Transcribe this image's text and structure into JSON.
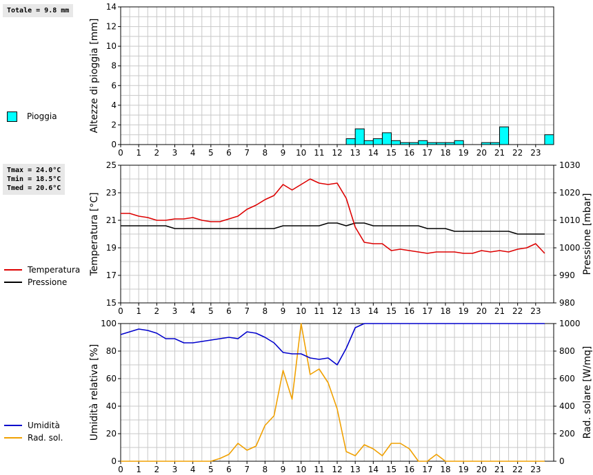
{
  "info": {
    "rain_total": "Totale = 9.8 mm",
    "tmax": "Tmax = 24.0°C",
    "tmin": "Tmin = 18.5°C",
    "tmed": "Tmed = 20.6°C"
  },
  "legend": {
    "rain": "Pioggia",
    "temperature": "Temperatura",
    "pressure": "Pressione",
    "humidity": "Umidità",
    "radiation": "Rad. sol."
  },
  "colors": {
    "rain_fill": "#00ffff",
    "temperature": "#dd0000",
    "pressure": "#000000",
    "humidity": "#0000cc",
    "radiation": "#f0a000",
    "grid": "#c8c8c8"
  },
  "chart_data": [
    {
      "type": "bar",
      "ylabel": "Altezze di pioggia [mm]",
      "ylim": [
        0,
        14
      ],
      "yticks": [
        0,
        2,
        4,
        6,
        8,
        10,
        12,
        14
      ],
      "xticks": [
        0,
        1,
        2,
        3,
        4,
        5,
        6,
        7,
        8,
        9,
        10,
        11,
        12,
        13,
        14,
        15,
        16,
        17,
        18,
        19,
        20,
        21,
        22,
        23
      ],
      "series": [
        {
          "name": "Pioggia",
          "x": [
            12.75,
            13.25,
            13.75,
            14.25,
            14.75,
            15.25,
            15.75,
            16.25,
            16.75,
            17.25,
            17.75,
            18.25,
            18.75,
            20.25,
            20.75,
            21.25,
            23.75
          ],
          "values": [
            0.6,
            1.6,
            0.4,
            0.6,
            1.2,
            0.4,
            0.2,
            0.2,
            0.4,
            0.2,
            0.2,
            0.2,
            0.4,
            0.2,
            0.2,
            1.8,
            1.0
          ]
        }
      ]
    },
    {
      "type": "line",
      "ylabel": "Temperatura [°C]",
      "ylabel_right": "Pressione [mbar]",
      "ylim": [
        15,
        25
      ],
      "yticks": [
        15,
        17,
        19,
        21,
        23,
        25
      ],
      "ylim_right": [
        980,
        1030
      ],
      "yticks_right": [
        980,
        990,
        1000,
        1010,
        1020,
        1030
      ],
      "xticks": [
        0,
        1,
        2,
        3,
        4,
        5,
        6,
        7,
        8,
        9,
        10,
        11,
        12,
        13,
        14,
        15,
        16,
        17,
        18,
        19,
        20,
        21,
        22,
        23
      ],
      "series": [
        {
          "name": "Temperatura",
          "axis": "left",
          "x": [
            0,
            0.5,
            1,
            1.5,
            2,
            2.5,
            3,
            3.5,
            4,
            4.5,
            5,
            5.5,
            6,
            6.5,
            7,
            7.5,
            8,
            8.5,
            9,
            9.5,
            10,
            10.5,
            11,
            11.5,
            12,
            12.5,
            13,
            13.5,
            14,
            14.5,
            15,
            15.5,
            16,
            16.5,
            17,
            17.5,
            18,
            18.5,
            19,
            19.5,
            20,
            20.5,
            21,
            21.5,
            22,
            22.5,
            23,
            23.5
          ],
          "values": [
            21.5,
            21.5,
            21.3,
            21.2,
            21.0,
            21.0,
            21.1,
            21.1,
            21.2,
            21.0,
            20.9,
            20.9,
            21.1,
            21.3,
            21.8,
            22.1,
            22.5,
            22.8,
            23.6,
            23.2,
            23.6,
            24.0,
            23.7,
            23.6,
            23.7,
            22.6,
            20.5,
            19.4,
            19.3,
            19.3,
            18.8,
            18.9,
            18.8,
            18.7,
            18.6,
            18.7,
            18.7,
            18.7,
            18.6,
            18.6,
            18.8,
            18.7,
            18.8,
            18.7,
            18.9,
            19.0,
            19.3,
            18.6
          ]
        },
        {
          "name": "Pressione",
          "axis": "right",
          "x": [
            0,
            0.5,
            1,
            1.5,
            2,
            2.5,
            3,
            3.5,
            4,
            4.5,
            5,
            5.5,
            6,
            6.5,
            7,
            7.5,
            8,
            8.5,
            9,
            9.5,
            10,
            10.5,
            11,
            11.5,
            12,
            12.5,
            13,
            13.5,
            14,
            14.5,
            15,
            15.5,
            16,
            16.5,
            17,
            17.5,
            18,
            18.5,
            19,
            19.5,
            20,
            20.5,
            21,
            21.5,
            22,
            22.5,
            23,
            23.5
          ],
          "values": [
            1008,
            1008,
            1008,
            1008,
            1008,
            1008,
            1007,
            1007,
            1007,
            1007,
            1007,
            1007,
            1007,
            1007,
            1007,
            1007,
            1007,
            1007,
            1008,
            1008,
            1008,
            1008,
            1008,
            1009,
            1009,
            1008,
            1009,
            1009,
            1008,
            1008,
            1008,
            1008,
            1008,
            1008,
            1007,
            1007,
            1007,
            1006,
            1006,
            1006,
            1006,
            1006,
            1006,
            1006,
            1005,
            1005,
            1005,
            1005
          ]
        }
      ]
    },
    {
      "type": "line",
      "ylabel": "Umidità relativa [%]",
      "ylabel_right": "Rad. solare [W/mq]",
      "ylim": [
        0,
        100
      ],
      "yticks": [
        0,
        20,
        40,
        60,
        80,
        100
      ],
      "ylim_right": [
        0,
        1000
      ],
      "yticks_right": [
        0,
        200,
        400,
        600,
        800,
        1000
      ],
      "xticks": [
        0,
        1,
        2,
        3,
        4,
        5,
        6,
        7,
        8,
        9,
        10,
        11,
        12,
        13,
        14,
        15,
        16,
        17,
        18,
        19,
        20,
        21,
        22,
        23
      ],
      "series": [
        {
          "name": "Umidità",
          "axis": "left",
          "x": [
            0,
            0.5,
            1,
            1.5,
            2,
            2.5,
            3,
            3.5,
            4,
            4.5,
            5,
            5.5,
            6,
            6.5,
            7,
            7.5,
            8,
            8.5,
            9,
            9.5,
            10,
            10.5,
            11,
            11.5,
            12,
            12.5,
            13,
            13.5,
            14,
            14.5,
            15,
            15.5,
            16,
            16.5,
            17,
            17.5,
            18,
            18.5,
            19,
            19.5,
            20,
            20.5,
            21,
            21.5,
            22,
            22.5,
            23,
            23.5
          ],
          "values": [
            92,
            94,
            96,
            95,
            93,
            89,
            89,
            86,
            86,
            87,
            88,
            89,
            90,
            89,
            94,
            93,
            90,
            86,
            79,
            78,
            78,
            75,
            74,
            75,
            70,
            82,
            97,
            100,
            100,
            100,
            100,
            100,
            100,
            100,
            100,
            100,
            100,
            100,
            100,
            100,
            100,
            100,
            100,
            100,
            100,
            100,
            100,
            100
          ]
        },
        {
          "name": "Rad. sol.",
          "axis": "right",
          "x": [
            0,
            0.5,
            1,
            1.5,
            2,
            2.5,
            3,
            3.5,
            4,
            4.5,
            5,
            5.5,
            6,
            6.5,
            7,
            7.5,
            8,
            8.5,
            9,
            9.5,
            10,
            10.5,
            11,
            11.5,
            12,
            12.5,
            13,
            13.5,
            14,
            14.5,
            15,
            15.5,
            16,
            16.5,
            17,
            17.5,
            18,
            18.5,
            19,
            19.5,
            20,
            20.5,
            21,
            21.5,
            22,
            22.5,
            23,
            23.5
          ],
          "values": [
            0,
            0,
            0,
            0,
            0,
            0,
            0,
            0,
            0,
            0,
            0,
            20,
            50,
            130,
            80,
            110,
            260,
            330,
            660,
            450,
            1000,
            630,
            670,
            570,
            380,
            70,
            40,
            120,
            90,
            40,
            130,
            130,
            90,
            0,
            0,
            50,
            0,
            0,
            0,
            0,
            0,
            0,
            0,
            0,
            0,
            0,
            0,
            0
          ]
        }
      ]
    }
  ]
}
